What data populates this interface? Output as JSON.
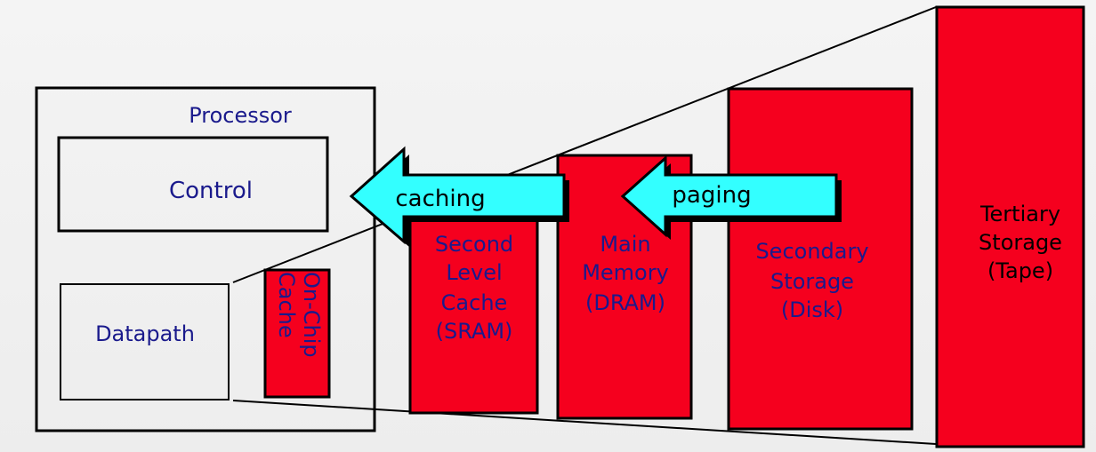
{
  "colors": {
    "storage_fill": "#f5001e",
    "arrow_fill": "#33ffff",
    "text_blue": "#1a1a8c",
    "text_black": "#000000",
    "stroke": "#000000"
  },
  "processor": {
    "title": "Processor",
    "control": "Control",
    "datapath": "Datapath",
    "onchip_line1": "On-Chip",
    "onchip_line2": "Cache"
  },
  "levels": {
    "second_level": [
      "Second",
      "Level",
      "Cache",
      "(SRAM)"
    ],
    "main_memory": [
      "Main",
      "Memory",
      "(DRAM)"
    ],
    "secondary": [
      "Secondary",
      "Storage",
      "(Disk)"
    ],
    "tertiary": [
      "Tertiary",
      "Storage",
      "(Tape)"
    ]
  },
  "arrows": {
    "caching": "caching",
    "paging": "paging"
  }
}
